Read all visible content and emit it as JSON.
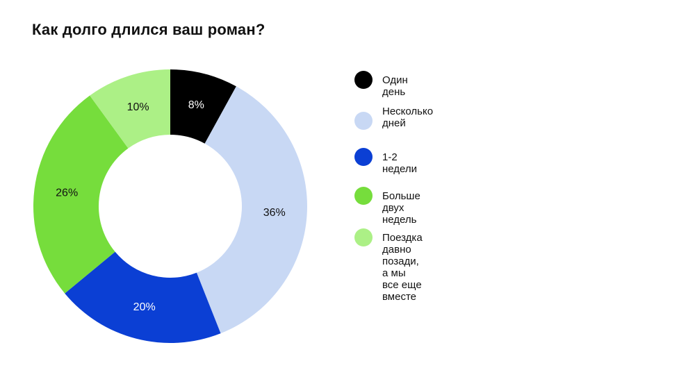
{
  "title": "Как долго длился ваш роман?",
  "chart_data": {
    "type": "pie",
    "subtype": "donut",
    "title": "Как долго длился ваш роман?",
    "categories": [
      "Один день",
      "Несколько дней",
      "1-2 недели",
      "Больше двух недель",
      "Поездка давно позади, а мы все еще вместе"
    ],
    "values": [
      8,
      36,
      20,
      26,
      10
    ],
    "labels": [
      "8%",
      "36%",
      "20%",
      "26%",
      "10%"
    ],
    "colors": [
      "#000000",
      "#c8d8f4",
      "#0b3fd4",
      "#76dd3c",
      "#acf086"
    ],
    "label_colors": [
      "#ffffff",
      "#111111",
      "#ffffff",
      "#111111",
      "#111111"
    ],
    "start_angle_deg": 0,
    "direction": "clockwise",
    "legend_position": "right"
  },
  "legend": [
    {
      "label": "Один день"
    },
    {
      "label": "Несколько",
      "label2": "дней"
    },
    {
      "label": "1-2 недели"
    },
    {
      "label": "Больше двух недель"
    },
    {
      "label": "Поездка давно позади, а мы все еще вместе"
    }
  ]
}
